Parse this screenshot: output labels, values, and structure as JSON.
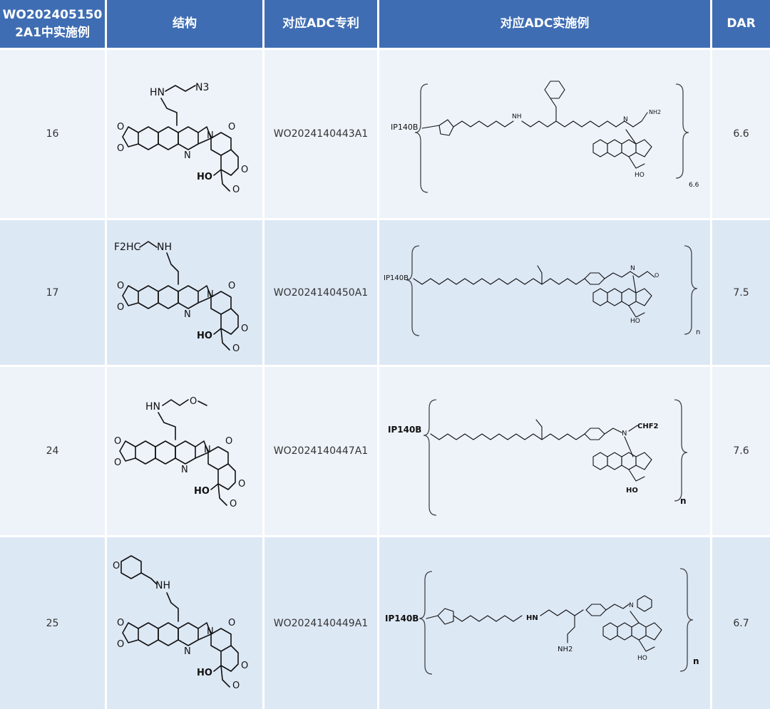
{
  "header": {
    "example": "WO202405150\n2A1中实施例",
    "structure": "结构",
    "adc_patent": "对应ADC专利",
    "adc_example": "对应ADC实施例",
    "dar": "DAR"
  },
  "rows": [
    {
      "example": "16",
      "patent": "WO2024140443A1",
      "dar": "6.6",
      "amine": "HN",
      "tail": "N3",
      "antibody": "IP140B",
      "load": "6.6"
    },
    {
      "example": "17",
      "patent": "WO2024140450A1",
      "dar": "7.5",
      "amine": "NH",
      "tail": "F2HC",
      "antibody": "IP140B",
      "load": "n"
    },
    {
      "example": "24",
      "patent": "WO2024140447A1",
      "dar": "7.6",
      "amine": "HN",
      "tail": "O",
      "antibody": "IP140B",
      "load": "n"
    },
    {
      "example": "25",
      "patent": "WO2024140449A1",
      "dar": "6.7",
      "amine": "NH",
      "tail": "O",
      "antibody": "IP140B",
      "load": "n"
    }
  ],
  "labels": {
    "ho": "HO",
    "n_atom": "N",
    "o_atom": "O",
    "nh": "NH",
    "hn": "HN",
    "nh2": "NH2",
    "chf2": "CHF2",
    "n3": "N3"
  }
}
